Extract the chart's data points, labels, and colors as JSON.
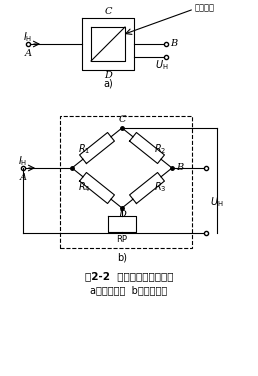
{
  "title_line1": "图2-2  霍尔元件的等效电桥",
  "title_line2": "a）霍尔元件  b）等效电桥",
  "bg_color": "#ffffff",
  "fig_label_a": "a)",
  "fig_label_b": "b)",
  "hall_label": "霍尔元件",
  "rp_label": "RP",
  "node_A": "A",
  "node_B": "B",
  "node_C": "C",
  "node_D": "D"
}
